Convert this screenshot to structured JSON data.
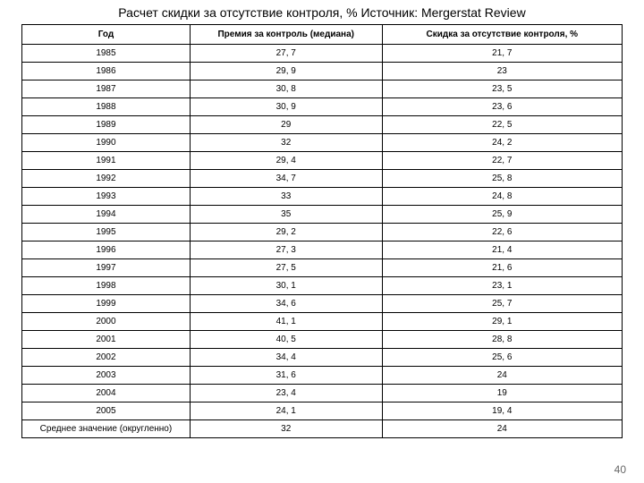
{
  "title": "Расчет скидки за отсутствие контроля, % Источник: Mergerstat Review",
  "page_number": "40",
  "table": {
    "columns": [
      "Год",
      "Премия за контроль (медиана)",
      "Скидка за отсутствие контроля, %"
    ],
    "rows": [
      [
        "1985",
        "27, 7",
        "21, 7"
      ],
      [
        "1986",
        "29, 9",
        "23"
      ],
      [
        "1987",
        "30, 8",
        "23, 5"
      ],
      [
        "1988",
        "30, 9",
        "23, 6"
      ],
      [
        "1989",
        "29",
        "22, 5"
      ],
      [
        "1990",
        "32",
        "24, 2"
      ],
      [
        "1991",
        "29, 4",
        "22, 7"
      ],
      [
        "1992",
        "34, 7",
        "25, 8"
      ],
      [
        "1993",
        "33",
        "24, 8"
      ],
      [
        "1994",
        "35",
        "25, 9"
      ],
      [
        "1995",
        "29, 2",
        "22, 6"
      ],
      [
        "1996",
        "27, 3",
        "21, 4"
      ],
      [
        "1997",
        "27, 5",
        "21, 6"
      ],
      [
        "1998",
        "30, 1",
        "23, 1"
      ],
      [
        "1999",
        "34, 6",
        "25, 7"
      ],
      [
        "2000",
        "41, 1",
        "29, 1"
      ],
      [
        "2001",
        "40, 5",
        "28, 8"
      ],
      [
        "2002",
        "34, 4",
        "25, 6"
      ],
      [
        "2003",
        "31, 6",
        "24"
      ],
      [
        "2004",
        "23, 4",
        "19"
      ],
      [
        "2005",
        "24, 1",
        "19, 4"
      ],
      [
        "Среднее значение (округленно)",
        "32",
        "24"
      ]
    ]
  },
  "style": {
    "background_color": "#ffffff",
    "title_fontsize": 14,
    "header_fontsize": 10,
    "cell_fontsize": 10,
    "border_color": "#000000",
    "pagenum_color": "#666666"
  }
}
